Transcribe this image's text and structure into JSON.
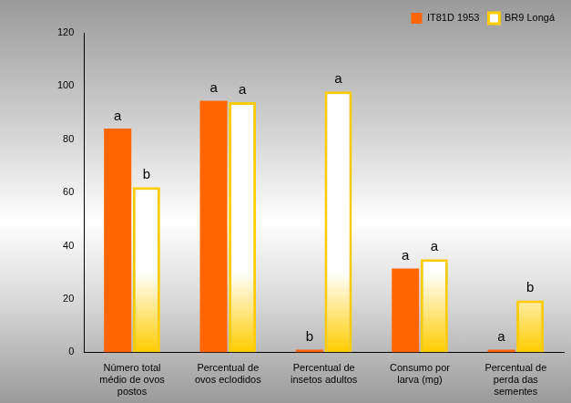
{
  "chart_data": {
    "type": "bar",
    "categories": [
      [
        "Número total",
        "médio de ovos",
        "postos"
      ],
      [
        "Percentual de",
        "ovos eclodidos"
      ],
      [
        "Percentual de",
        "insetos adultos"
      ],
      [
        "Consumo por",
        "larva (mg)"
      ],
      [
        "Percentual de",
        "perda das",
        "sementes"
      ]
    ],
    "series": [
      {
        "name": "IT81D 1953",
        "color": "#ff6600",
        "values": [
          84,
          94.5,
          1,
          31.5,
          1
        ],
        "annotations": [
          "a",
          "a",
          "b",
          "a",
          "a"
        ]
      },
      {
        "name": "BR9 Longá",
        "color": "#ffcc00",
        "values": [
          62,
          94,
          98,
          35,
          19.5
        ],
        "annotations": [
          "b",
          "a",
          "a",
          "a",
          "b"
        ]
      }
    ],
    "ylim": [
      0,
      120
    ],
    "yticks": [
      0,
      20,
      40,
      60,
      80,
      100,
      120
    ],
    "grid": false,
    "legend": "top-right"
  }
}
